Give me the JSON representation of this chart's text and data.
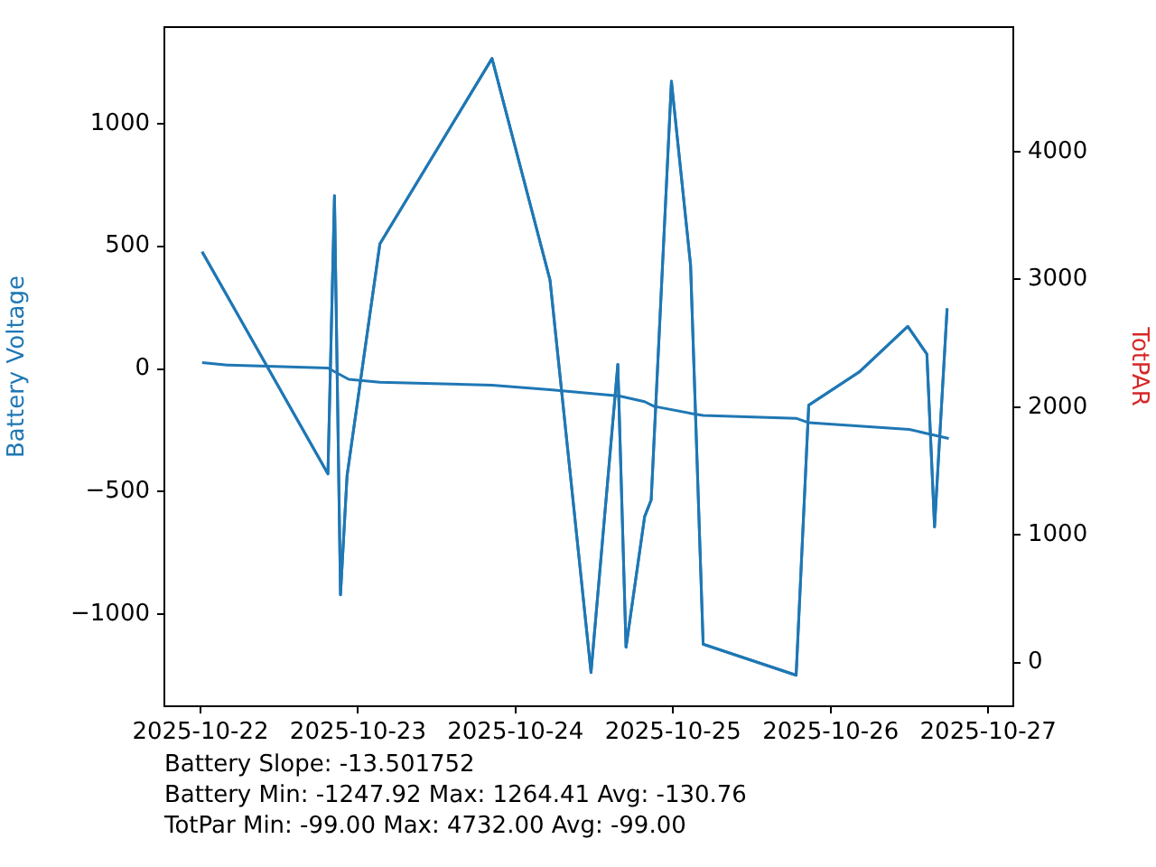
{
  "chart_data": {
    "type": "line",
    "ylabel": "Battery Voltage",
    "y2label": "TotPAR",
    "xlim": [
      "2025-10-21T18:30",
      "2025-10-27T03:50"
    ],
    "xticks": [
      "2025-10-22",
      "2025-10-23",
      "2025-10-24",
      "2025-10-25",
      "2025-10-26",
      "2025-10-27"
    ],
    "ylim": [
      -1374,
      1393
    ],
    "yticks": [
      -1000,
      -500,
      0,
      500,
      1000
    ],
    "y2lim": [
      -343,
      4977
    ],
    "y2ticks": [
      0,
      1000,
      2000,
      3000,
      4000
    ],
    "grid": false,
    "legend": false,
    "marker": "none",
    "line_style": "solid",
    "series": [
      {
        "color": "#1f77b4",
        "x": [
          "2025-10-22T00:15",
          "2025-10-22T04:05",
          "2025-10-22T19:25",
          "2025-10-22T22:35",
          "2025-10-23T03:20",
          "2025-10-23T20:25",
          "2025-10-24T05:15",
          "2025-10-24T15:50",
          "2025-10-24T19:40",
          "2025-10-24T21:05",
          "2025-10-25T02:55",
          "2025-10-25T04:35",
          "2025-10-25T18:45",
          "2025-10-25T20:40",
          "2025-10-26T12:00",
          "2025-10-26T14:40",
          "2025-10-26T18:00"
        ],
        "values": [
          26,
          16,
          4,
          -42,
          -54,
          -66,
          -84,
          -110,
          -133,
          -152,
          -182,
          -189,
          -201,
          -219,
          -246,
          -263,
          -283
        ]
      },
      {
        "color": "#1f77b4",
        "x": [
          "2025-10-22T00:15",
          "2025-10-22T19:25",
          "2025-10-22T20:25",
          "2025-10-22T21:20",
          "2025-10-22T22:20",
          "2025-10-23T03:20",
          "2025-10-23T20:25",
          "2025-10-24T05:15",
          "2025-10-24T11:30",
          "2025-10-24T15:35",
          "2025-10-24T16:50",
          "2025-10-24T19:40",
          "2025-10-24T20:40",
          "2025-10-24T23:45",
          "2025-10-25T02:40",
          "2025-10-25T04:35",
          "2025-10-25T18:45",
          "2025-10-25T20:40",
          "2025-10-26T04:20",
          "2025-10-26T11:45",
          "2025-10-26T14:40",
          "2025-10-26T15:50",
          "2025-10-26T17:45"
        ],
        "values": [
          478,
          -427,
          706,
          -920,
          -434,
          510,
          1264.41,
          363,
          -1236,
          19,
          -1133,
          -601,
          -533,
          1172,
          424,
          -1121,
          -1247.92,
          -147,
          -13,
          174,
          61,
          -643,
          247
        ]
      },
      {
        "color": "#1f77b4",
        "axis": "y2",
        "x": [
          "2025-10-22T00:15",
          "2025-10-22T19:25",
          "2025-10-22T20:25",
          "2025-10-22T21:20",
          "2025-10-22T22:20",
          "2025-10-23T03:20",
          "2025-10-23T20:25",
          "2025-10-24T05:15",
          "2025-10-24T11:30",
          "2025-10-24T15:35",
          "2025-10-24T16:50",
          "2025-10-24T19:40",
          "2025-10-24T20:40",
          "2025-10-24T23:45",
          "2025-10-25T02:40",
          "2025-10-25T04:35",
          "2025-10-25T18:45",
          "2025-10-25T20:40",
          "2025-10-26T04:20",
          "2025-10-26T11:45",
          "2025-10-26T14:40",
          "2025-10-26T15:50",
          "2025-10-26T17:45"
        ],
        "values": [
          3218,
          1477,
          3656,
          529,
          1463,
          3279,
          4732,
          2996,
          -79,
          2335,
          119,
          1142,
          1274,
          4552,
          3113,
          142,
          -99,
          2015,
          2274,
          2632,
          2415,
          1061,
          2773
        ]
      }
    ],
    "annotations": [
      "Battery Slope: -13.501752",
      "Battery Min: -1247.92 Max: 1264.41 Avg: -130.76",
      "TotPar Min: -99.00 Max: 4732.00 Avg: -99.00"
    ]
  }
}
